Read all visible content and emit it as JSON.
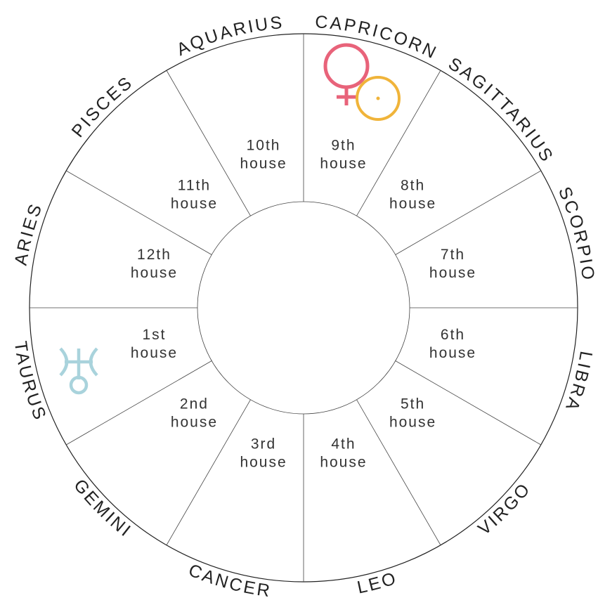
{
  "signs": [
    "ARIES",
    "TAURUS",
    "GEMINI",
    "CANCER",
    "LEO",
    "VIRGO",
    "LIBRA",
    "SCORPIO",
    "SAGITTARIUS",
    "CAPRICORN",
    "AQUARIUS",
    "PISCES"
  ],
  "houses": [
    {
      "number": "1st",
      "word": "house"
    },
    {
      "number": "2nd",
      "word": "house"
    },
    {
      "number": "3rd",
      "word": "house"
    },
    {
      "number": "4th",
      "word": "house"
    },
    {
      "number": "5th",
      "word": "house"
    },
    {
      "number": "6th",
      "word": "house"
    },
    {
      "number": "7th",
      "word": "house"
    },
    {
      "number": "8th",
      "word": "house"
    },
    {
      "number": "9th",
      "word": "house"
    },
    {
      "number": "10th",
      "word": "house"
    },
    {
      "number": "11th",
      "word": "house"
    },
    {
      "number": "12th",
      "word": "house"
    }
  ]
}
